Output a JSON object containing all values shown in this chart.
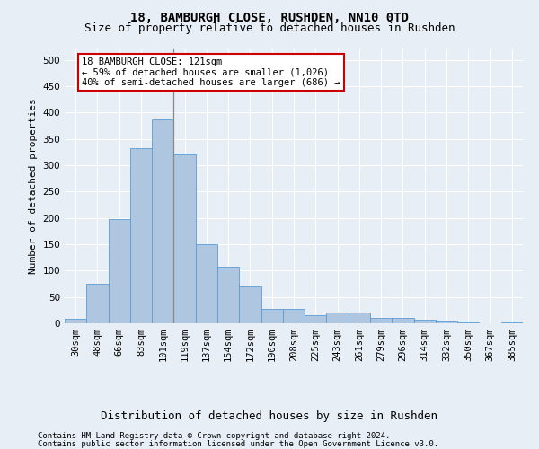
{
  "title": "18, BAMBURGH CLOSE, RUSHDEN, NN10 0TD",
  "subtitle": "Size of property relative to detached houses in Rushden",
  "xlabel": "Distribution of detached houses by size in Rushden",
  "ylabel": "Number of detached properties",
  "categories": [
    "30sqm",
    "48sqm",
    "66sqm",
    "83sqm",
    "101sqm",
    "119sqm",
    "137sqm",
    "154sqm",
    "172sqm",
    "190sqm",
    "208sqm",
    "225sqm",
    "243sqm",
    "261sqm",
    "279sqm",
    "296sqm",
    "314sqm",
    "332sqm",
    "350sqm",
    "367sqm",
    "385sqm"
  ],
  "values": [
    8,
    75,
    197,
    333,
    387,
    320,
    150,
    108,
    70,
    28,
    28,
    15,
    20,
    20,
    10,
    10,
    6,
    3,
    1,
    0,
    1
  ],
  "bar_color": "#aec6df",
  "bar_edge_color": "#5b9bd5",
  "annotation_text1": "18 BAMBURGH CLOSE: 121sqm",
  "annotation_text2": "← 59% of detached houses are smaller (1,026)",
  "annotation_text3": "40% of semi-detached houses are larger (686) →",
  "annotation_box_facecolor": "#ffffff",
  "annotation_box_edgecolor": "#cc0000",
  "vline_x": 4.5,
  "vline_color": "#888888",
  "ylim": [
    0,
    520
  ],
  "yticks": [
    0,
    50,
    100,
    150,
    200,
    250,
    300,
    350,
    400,
    450,
    500
  ],
  "bg_color": "#e8eef5",
  "plot_bg_color": "#e8eef5",
  "grid_color": "#ffffff",
  "title_fontsize": 10,
  "subtitle_fontsize": 9,
  "ylabel_fontsize": 8,
  "xlabel_fontsize": 9,
  "tick_fontsize": 7.5,
  "annotation_fontsize": 7.5,
  "footnote_fontsize": 6.5,
  "footnote1": "Contains HM Land Registry data © Crown copyright and database right 2024.",
  "footnote2": "Contains public sector information licensed under the Open Government Licence v3.0."
}
